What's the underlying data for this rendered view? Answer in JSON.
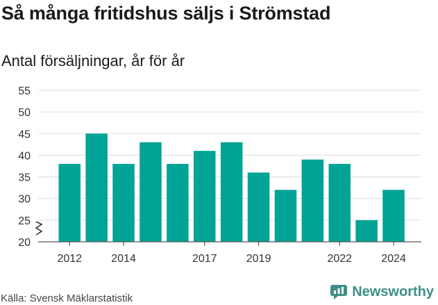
{
  "header": {
    "title": "Så många fritidshus säljs i Strömstad",
    "subtitle": "Antal försäljningar, år för år"
  },
  "footer": {
    "source": "Källa: Svensk Mäklarstatistik",
    "brand": "Newsworthy",
    "brand_icon": "newsworthy-logo-icon"
  },
  "chart_data": {
    "type": "bar",
    "categories": [
      "2012",
      "2013",
      "2014",
      "2015",
      "2016",
      "2017",
      "2018",
      "2019",
      "2020",
      "2021",
      "2022",
      "2023",
      "2024"
    ],
    "values": [
      38,
      45,
      38,
      43,
      38,
      41,
      43,
      36,
      32,
      39,
      38,
      25,
      32
    ],
    "xtick_labels": [
      "2012",
      "2014",
      "2017",
      "2019",
      "2022",
      "2024"
    ],
    "yticks": [
      20,
      25,
      30,
      35,
      40,
      45,
      50,
      55
    ],
    "ylim": [
      20,
      55
    ],
    "y_axis_break": true,
    "grid": true,
    "title": "",
    "xlabel": "",
    "ylabel": "",
    "bar_color": "#00a396",
    "grid_color": "#dddddd"
  }
}
